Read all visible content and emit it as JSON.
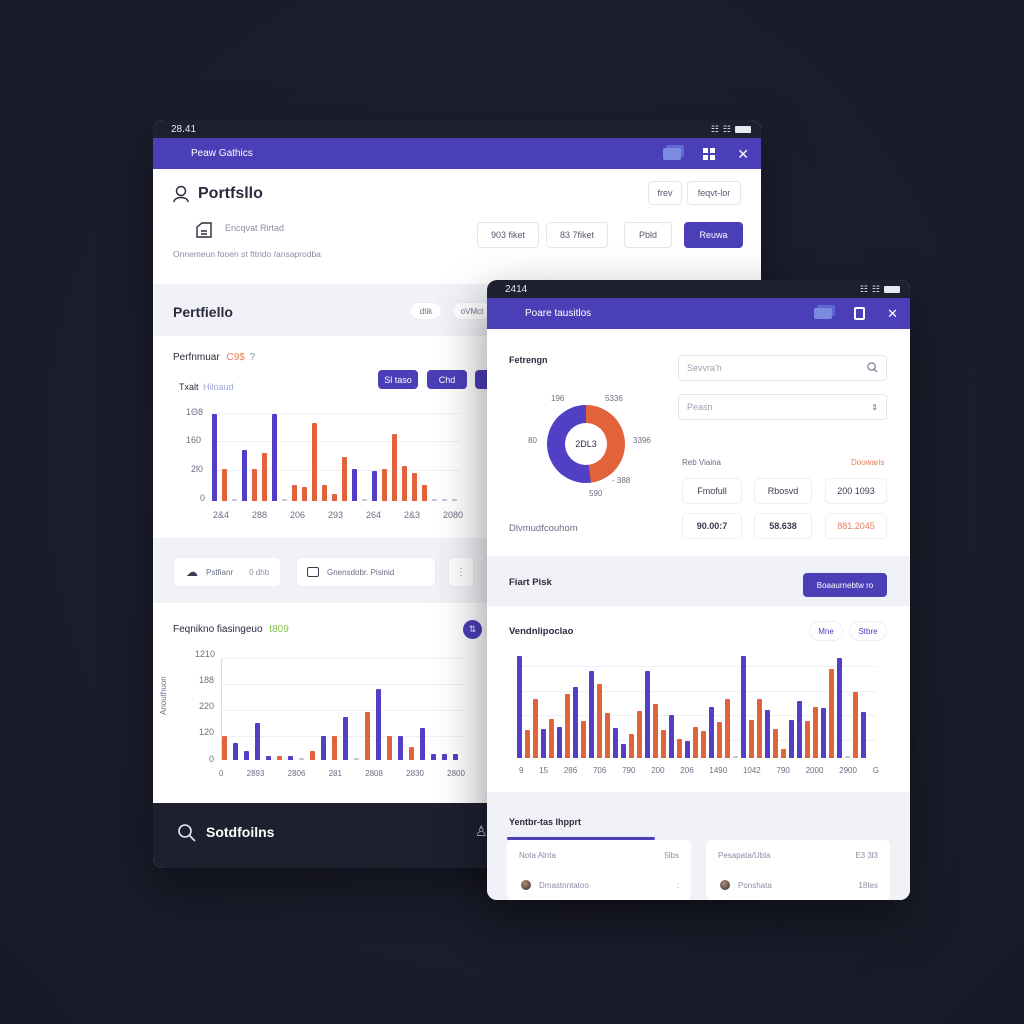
{
  "left_window": {
    "status_time": "28.41",
    "appbar_title": "Peaw Gathics",
    "header": {
      "title": "Portfsllo",
      "buttons": [
        "frev",
        "feqvt-lor"
      ],
      "sub_label": "Encqvat Rirtad",
      "description": "Onnemeun fooen st fttrido /ansaprodba",
      "stat_buttons": [
        "903 fiket",
        "83 7fiket",
        "Pbld"
      ],
      "primary_button": "Reuwa"
    },
    "portfolio_section": {
      "title": "Pertfiello",
      "pills": [
        "dtik",
        "oVMct"
      ]
    },
    "performance_chart": {
      "title": "Perfnmuar",
      "title_value": "C9$",
      "title_suffix": "?",
      "subtitle": "Txalt",
      "subtitle_note": "Hiloaud",
      "buttons": [
        "Sl taso",
        "Chd",
        "d"
      ]
    },
    "info_row": {
      "card1_label": "Pstfianr",
      "card1_value": "0 dhb",
      "card2_label": "Gnensdobr. Pisinid"
    },
    "bottom_chart": {
      "title": "Feqnikno fiasingeuo",
      "title_value": "t809",
      "y_axis_title": "Anouthuon"
    },
    "bottom_bar": {
      "search_label": "Sotdfoilns"
    }
  },
  "right_window": {
    "status_time": "2414",
    "appbar_title": "Poare tausitlos",
    "section_title": "Fetrengn",
    "search_placeholder": "Sevvra'h",
    "select_value": "Peasn",
    "donut_caption": "Dlvmudfcouhom",
    "stats": {
      "label": "Reb Viaina",
      "link": "Doowaris",
      "row1": [
        "Fmofull",
        "Rbosvd",
        "200 1093"
      ],
      "row2": [
        "90.00:7",
        "58.638",
        "881.2045"
      ]
    },
    "risk_bar": {
      "title": "Fiart Pisk",
      "button": "Boaaurnebtw ro"
    },
    "vendor_chart": {
      "title": "Vendnlipoclao",
      "pills": [
        "Mne",
        "Stbre"
      ]
    },
    "bottom_section": {
      "title": "Yentbr-tas lhpprt",
      "cards": [
        {
          "header_left": "Nota Alnta",
          "header_right": "5lbs",
          "row_name": "Dmastnntatoo",
          "row_value": ":"
        },
        {
          "header_left": "Pesapata/Ubla",
          "header_right": "E3 3l3",
          "row_name": "Ponshata",
          "row_value": "18tes"
        }
      ]
    }
  },
  "colors": {
    "primary": "#4b3fb8",
    "bar_blue": "#5140c6",
    "bar_orange": "#e2623b",
    "status_green": "#8bc34a",
    "accent_orange": "#e8805a"
  },
  "chart_data": [
    {
      "type": "bar",
      "title": "Perfnmuar C9$",
      "yticks": [
        "0",
        "2l0",
        "160",
        "1Θ8"
      ],
      "xticks": [
        "2&4",
        "288",
        "206",
        "293",
        "264",
        "2&3",
        "2080"
      ],
      "series": [
        {
          "name": "blue",
          "values": [
            190,
            0,
            0,
            110,
            0,
            0,
            190,
            0,
            0,
            0,
            0,
            0,
            0,
            0,
            70,
            0,
            65,
            0,
            0,
            0,
            0,
            0,
            0,
            0,
            0
          ]
        },
        {
          "name": "orange",
          "values": [
            0,
            70,
            0,
            0,
            70,
            105,
            0,
            0,
            35,
            30,
            170,
            35,
            15,
            95,
            0,
            0,
            0,
            70,
            145,
            75,
            60,
            35,
            5,
            5,
            5
          ]
        }
      ],
      "ylim": [
        0,
        200
      ]
    },
    {
      "type": "bar",
      "title": "Feqnikno fiasingeuo t809",
      "ylabel": "Anouthuon",
      "yticks": [
        "0",
        "120",
        "220",
        "188",
        "1210"
      ],
      "xticks": [
        "0",
        "2893",
        "2806",
        "281",
        "2808",
        "2830",
        "2800"
      ],
      "series": [
        {
          "name": "orange",
          "values": [
            55,
            0,
            0,
            0,
            0,
            10,
            0,
            0,
            20,
            0,
            55,
            0,
            0,
            110,
            0,
            55,
            0,
            30,
            0,
            0,
            0,
            0
          ]
        },
        {
          "name": "blue",
          "values": [
            0,
            40,
            20,
            85,
            10,
            0,
            10,
            0,
            0,
            55,
            0,
            100,
            0,
            0,
            165,
            0,
            55,
            0,
            75,
            15,
            15,
            15
          ]
        }
      ],
      "ylim": [
        0,
        220
      ]
    },
    {
      "type": "pie",
      "title": "Dlvmudfcouhom",
      "center_label": "2DL3",
      "labels": [
        "196",
        "5336",
        "3396",
        "- 388",
        "590",
        "80"
      ],
      "series": [
        {
          "name": "blue",
          "value": 52
        },
        {
          "name": "orange",
          "value": 48
        }
      ]
    },
    {
      "type": "bar",
      "title": "Vendnlipoclao",
      "xticks": [
        "9",
        "15",
        "286",
        "706",
        "790",
        "200",
        "206",
        "1490",
        "1042",
        "790",
        "2000",
        "2900",
        "G"
      ],
      "series": [
        {
          "name": "blue",
          "values": [
            100,
            0,
            0,
            28,
            0,
            30,
            0,
            70,
            0,
            85,
            0,
            0,
            29,
            14,
            0,
            0,
            85,
            0,
            0,
            42,
            0,
            17,
            0,
            0,
            50,
            0,
            0,
            0,
            100,
            0,
            0,
            47,
            0,
            0,
            37,
            56,
            0,
            0,
            49,
            0,
            98,
            0,
            0,
            45
          ]
        },
        {
          "name": "orange",
          "values": [
            0,
            27,
            58,
            0,
            38,
            0,
            63,
            0,
            36,
            0,
            73,
            44,
            0,
            0,
            24,
            46,
            0,
            53,
            27,
            0,
            19,
            0,
            30,
            26,
            0,
            35,
            58,
            0,
            0,
            37,
            58,
            0,
            28,
            9,
            0,
            0,
            36,
            50,
            58,
            87,
            0,
            0,
            65,
            10
          ]
        }
      ],
      "ylim": [
        0,
        100
      ]
    }
  ]
}
